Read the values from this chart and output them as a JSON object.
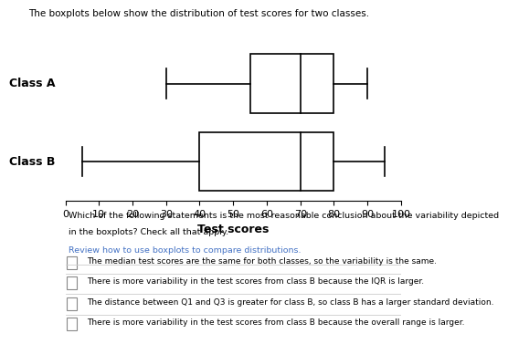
{
  "title_text": "The boxplots below show the distribution of test scores for two classes.",
  "class_a": {
    "label": "Class A",
    "whisker_low": 30,
    "q1": 55,
    "median": 70,
    "q3": 80,
    "whisker_high": 90
  },
  "class_b": {
    "label": "Class B",
    "whisker_low": 5,
    "q1": 40,
    "median": 70,
    "q3": 80,
    "whisker_high": 95
  },
  "xlabel": "Test scores",
  "xmin": 0,
  "xmax": 100,
  "xticks": [
    0,
    10,
    20,
    30,
    40,
    50,
    60,
    70,
    80,
    90,
    100
  ],
  "question_text1": "Which of the following statements is the most reasonable conclusion about the variability depicted",
  "question_text2": "in the boxplots? Check all that apply.",
  "link_text": "Review how to use boxplots to compare distributions.",
  "options": [
    "The median test scores are the same for both classes, so the variability is the same.",
    "There is more variability in the test scores from class B because the IQR is larger.",
    "The distance between Q1 and Q3 is greater for class B, so class B has a larger standard deviation.",
    "There is more variability in the test scores from class B because the overall range is larger."
  ],
  "box_color": "#ffffff",
  "box_edge_color": "#000000",
  "line_color": "#000000",
  "bg_color": "#ffffff",
  "text_color": "#000000",
  "link_color": "#4472c4",
  "separator_color": "#cccccc"
}
